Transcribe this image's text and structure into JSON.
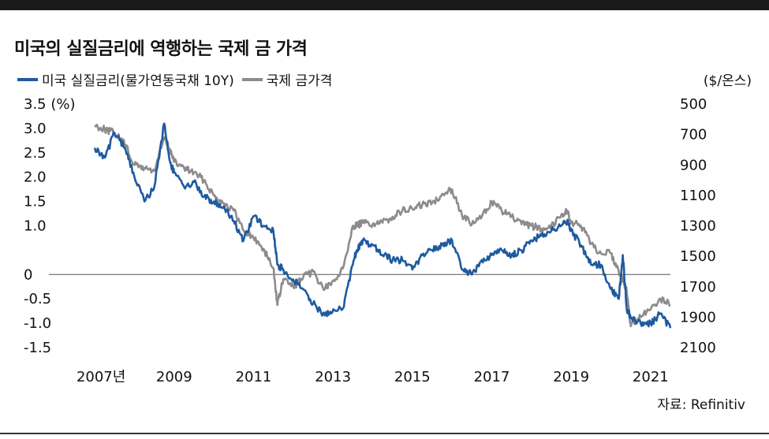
{
  "header": {
    "title": "미국의 실질금리에 역행하는 국제 금 가격",
    "right_axis_unit": "($/온스)",
    "source": "자료: Refinitiv"
  },
  "colors": {
    "real_rate": "#1e5aa0",
    "gold": "#8c8c8c",
    "zero_line": "#555555",
    "top_bar": "#1a1a1a"
  },
  "chart_data": {
    "type": "line",
    "title": "미국의 실질금리에 역행하는 국제 금 가격",
    "left_axis": {
      "ticks": [
        "3.5 (%)",
        "3.0",
        "2.5",
        "2.0",
        "1.5",
        "1.0",
        "0",
        "-0.5",
        "-1.0",
        "-1.5"
      ],
      "tick_values": [
        3.5,
        3.0,
        2.5,
        2.0,
        1.5,
        1.0,
        0,
        -0.5,
        -1.0,
        -1.5
      ],
      "range": [
        -1.5,
        3.5
      ]
    },
    "right_axis": {
      "label": "($/온스)",
      "ticks": [
        "500",
        "700",
        "900",
        "1100",
        "1300",
        "1500",
        "1700",
        "1900",
        "2100"
      ],
      "tick_values": [
        500,
        700,
        900,
        1100,
        1300,
        1500,
        1700,
        1900,
        2100
      ],
      "range": [
        500,
        2100
      ],
      "inverted": true
    },
    "x_axis": {
      "ticks": [
        "2007년",
        "2009",
        "2011",
        "2013",
        "2015",
        "2017",
        "2019",
        "2021"
      ],
      "tick_values": [
        2007,
        2009,
        2011,
        2013,
        2015,
        2017,
        2019,
        2021
      ],
      "range": [
        2006.6,
        2021.5
      ]
    },
    "series": [
      {
        "name": "미국 실질금리(물가연동국채 10Y)",
        "axis": "left",
        "x": [
          2007.0,
          2007.25,
          2007.5,
          2007.75,
          2008.0,
          2008.25,
          2008.5,
          2008.75,
          2008.9,
          2009.0,
          2009.25,
          2009.5,
          2009.75,
          2010.0,
          2010.25,
          2010.5,
          2010.75,
          2011.0,
          2011.25,
          2011.5,
          2011.6,
          2011.75,
          2012.0,
          2012.25,
          2012.5,
          2012.75,
          2012.95,
          2013.25,
          2013.5,
          2013.6,
          2013.75,
          2014.0,
          2014.25,
          2014.5,
          2014.75,
          2015.0,
          2015.25,
          2015.5,
          2015.75,
          2016.0,
          2016.25,
          2016.5,
          2016.75,
          2017.0,
          2017.25,
          2017.5,
          2017.75,
          2018.0,
          2018.25,
          2018.5,
          2018.75,
          2018.9,
          2019.0,
          2019.25,
          2019.5,
          2019.75,
          2020.0,
          2020.2,
          2020.3,
          2020.4,
          2020.5,
          2020.75,
          2021.0,
          2021.25,
          2021.5
        ],
        "values": [
          2.6,
          2.4,
          2.9,
          2.6,
          2.0,
          1.5,
          1.8,
          3.1,
          2.3,
          2.1,
          1.8,
          1.9,
          1.6,
          1.5,
          1.4,
          1.1,
          0.7,
          1.2,
          1.0,
          0.9,
          0.2,
          0.1,
          -0.1,
          -0.3,
          -0.6,
          -0.8,
          -0.8,
          -0.7,
          0.2,
          0.5,
          0.7,
          0.6,
          0.4,
          0.3,
          0.3,
          0.1,
          0.4,
          0.5,
          0.6,
          0.7,
          0.1,
          0.0,
          0.3,
          0.4,
          0.5,
          0.4,
          0.5,
          0.7,
          0.8,
          0.9,
          1.0,
          1.1,
          0.9,
          0.6,
          0.2,
          0.2,
          -0.3,
          -0.5,
          0.4,
          -0.7,
          -0.9,
          -1.0,
          -1.0,
          -0.8,
          -1.1
        ]
      },
      {
        "name": "국제 금가격",
        "axis": "right",
        "x": [
          2007.0,
          2007.25,
          2007.5,
          2007.75,
          2008.0,
          2008.25,
          2008.5,
          2008.75,
          2008.9,
          2009.0,
          2009.25,
          2009.5,
          2009.75,
          2010.0,
          2010.25,
          2010.5,
          2010.75,
          2011.0,
          2011.25,
          2011.5,
          2011.6,
          2011.75,
          2012.0,
          2012.25,
          2012.5,
          2012.75,
          2012.95,
          2013.25,
          2013.5,
          2013.6,
          2013.75,
          2014.0,
          2014.25,
          2014.5,
          2014.75,
          2015.0,
          2015.25,
          2015.5,
          2015.75,
          2016.0,
          2016.25,
          2016.5,
          2016.75,
          2017.0,
          2017.25,
          2017.5,
          2017.75,
          2018.0,
          2018.25,
          2018.5,
          2018.75,
          2018.9,
          2019.0,
          2019.25,
          2019.5,
          2019.75,
          2020.0,
          2020.2,
          2020.3,
          2020.4,
          2020.5,
          2020.75,
          2021.0,
          2021.25,
          2021.5
        ],
        "values": [
          640,
          665,
          690,
          760,
          900,
          920,
          940,
          720,
          800,
          880,
          920,
          950,
          1000,
          1100,
          1150,
          1200,
          1330,
          1380,
          1450,
          1580,
          1820,
          1650,
          1700,
          1640,
          1600,
          1710,
          1690,
          1580,
          1300,
          1300,
          1280,
          1290,
          1280,
          1240,
          1200,
          1190,
          1160,
          1150,
          1090,
          1060,
          1230,
          1290,
          1240,
          1140,
          1200,
          1240,
          1290,
          1300,
          1320,
          1300,
          1230,
          1200,
          1280,
          1300,
          1420,
          1480,
          1480,
          1600,
          1650,
          1730,
          1960,
          1900,
          1850,
          1780,
          1820
        ]
      }
    ],
    "zero_line": true,
    "legend": "top-left",
    "grid": false
  }
}
